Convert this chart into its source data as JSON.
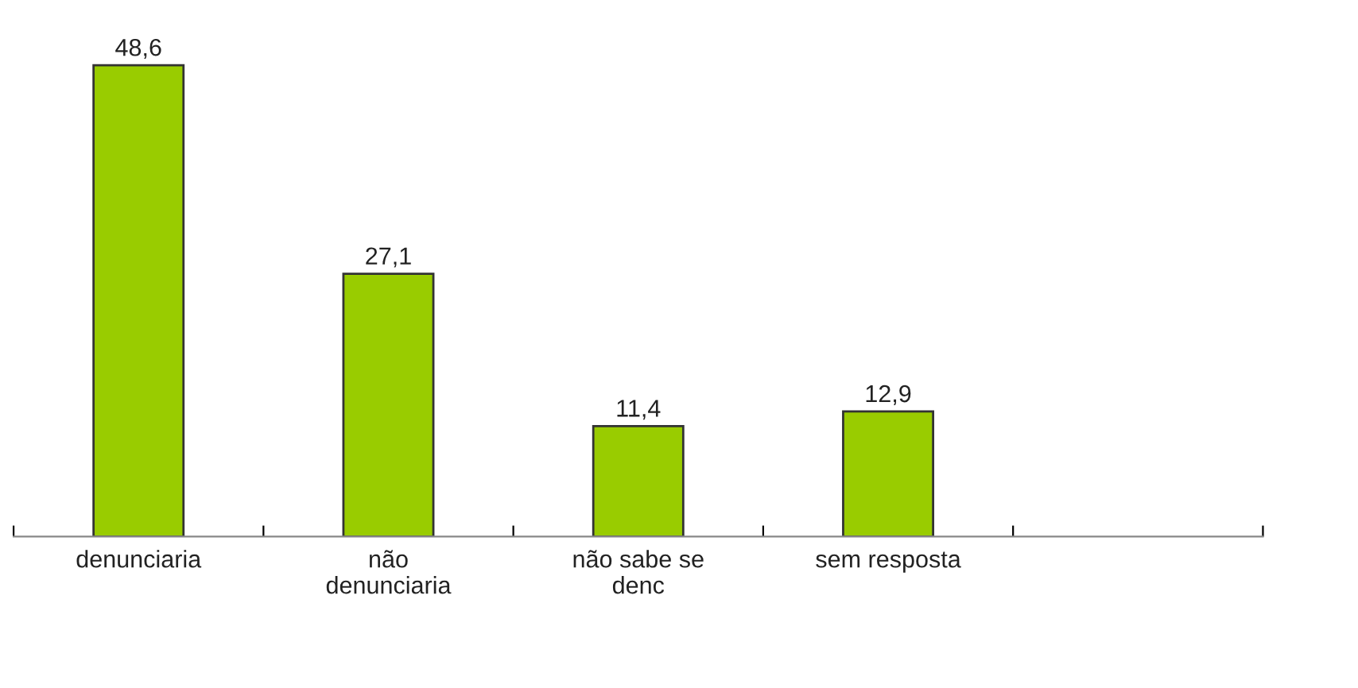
{
  "chart_data": {
    "type": "bar",
    "categories": [
      "denunciaria",
      "não\ndenunciaria",
      "não sabe se\ndenc",
      "sem resposta",
      null
    ],
    "values": [
      48.6,
      27.1,
      11.4,
      12.9,
      null
    ],
    "value_labels": [
      "48,6",
      "27,1",
      "11,4",
      "12,9",
      null
    ],
    "color": "#99cc00",
    "grid": false,
    "legend": false
  }
}
